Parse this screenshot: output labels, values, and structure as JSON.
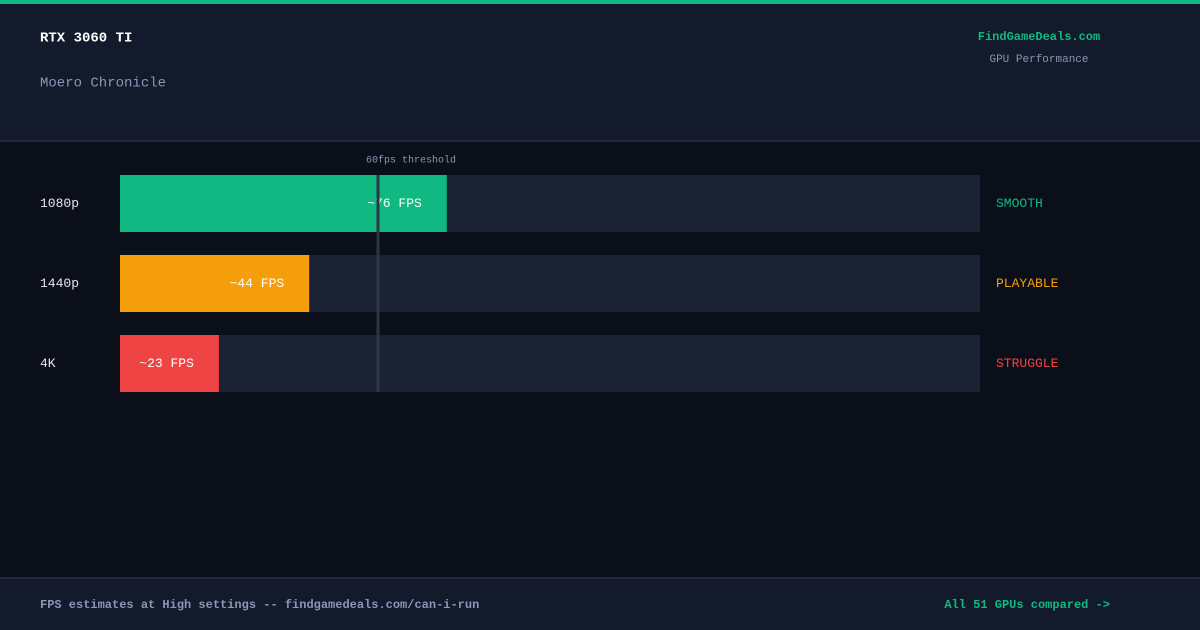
{
  "header": {
    "title": "RTX 3060 TI",
    "subtitle": "Moero Chronicle",
    "brand": "FindGameDeals.com",
    "brand_sub": "GPU Performance"
  },
  "chart_data": {
    "type": "bar",
    "orientation": "horizontal",
    "categories": [
      "1080p",
      "1440p",
      "4K"
    ],
    "values": [
      76,
      44,
      23
    ],
    "value_labels": [
      "~76 FPS",
      "~44 FPS",
      "~23 FPS"
    ],
    "colors": [
      "#10b981",
      "#f59e0b",
      "#ef4444"
    ],
    "ratings": [
      "SMOOTH",
      "PLAYABLE",
      "STRUGGLE"
    ],
    "xlim": [
      0,
      200
    ],
    "threshold": {
      "value": 60,
      "label": "60fps threshold"
    }
  },
  "footer": {
    "note": "FPS estimates at High settings -- findgamedeals.com/can-i-run",
    "link": "All 51 GPUs compared ->"
  }
}
